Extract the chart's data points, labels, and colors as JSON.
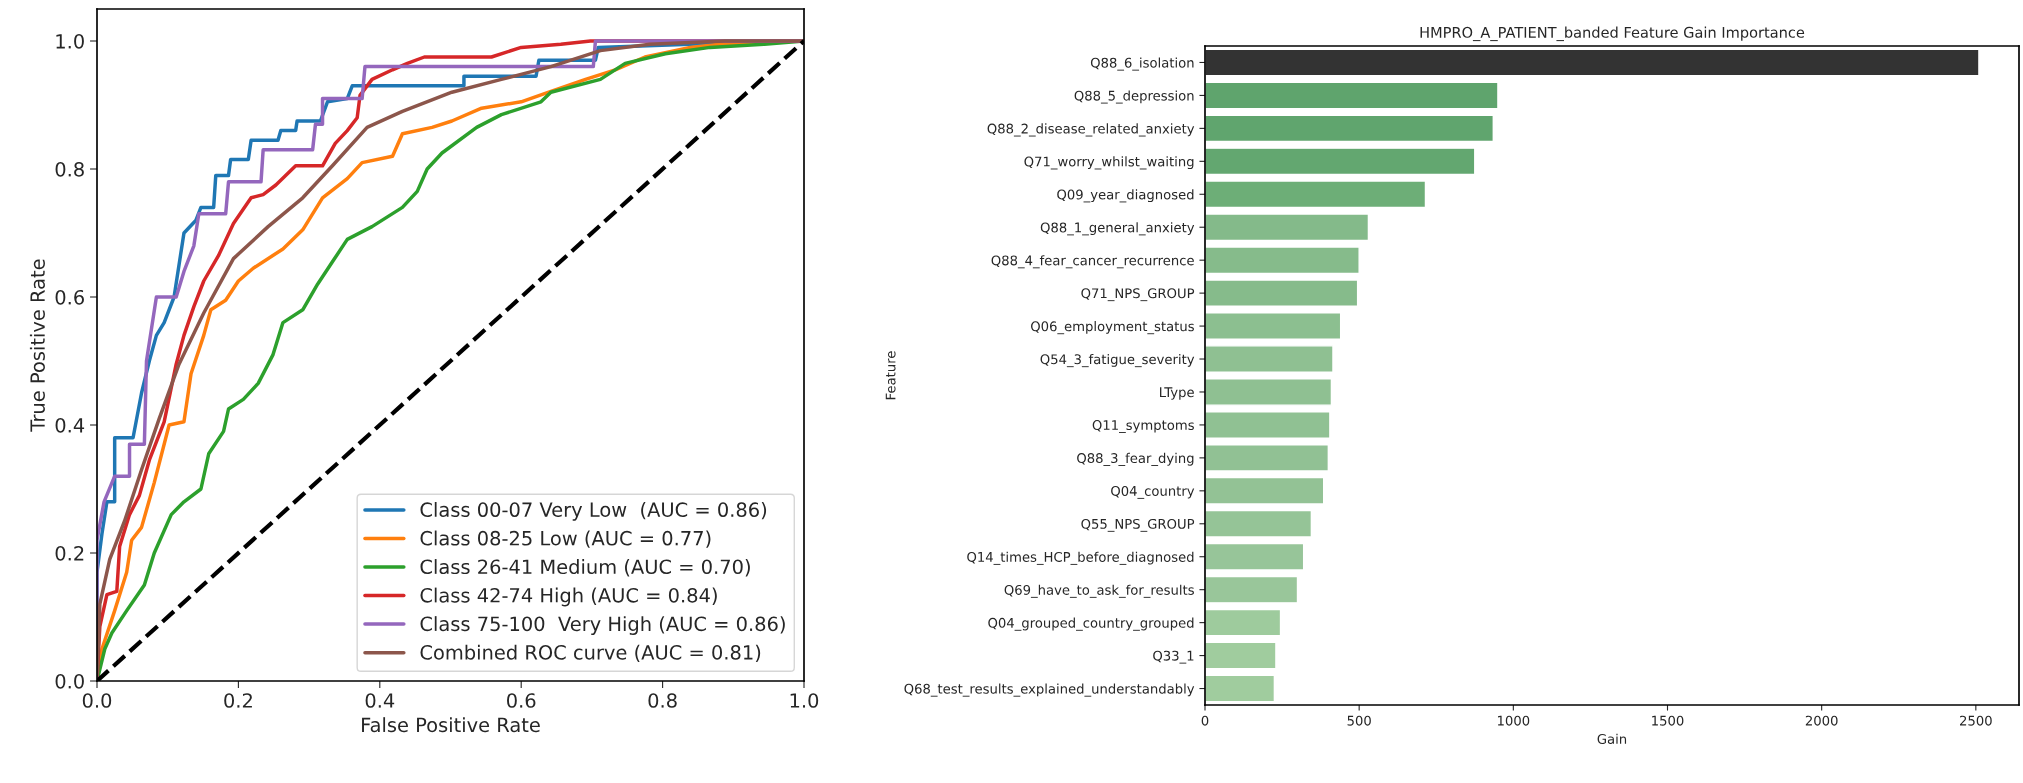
{
  "chart_data": [
    {
      "type": "line",
      "xlabel": "False Positive Rate",
      "ylabel": "True Positive Rate",
      "xlim": [
        0,
        1
      ],
      "ylim": [
        0,
        1.05
      ],
      "xticks": [
        {
          "value": 0,
          "label": "0.0"
        },
        {
          "value": 0.2,
          "label": "0.2"
        },
        {
          "value": 0.4,
          "label": "0.4"
        },
        {
          "value": 0.6,
          "label": "0.6"
        },
        {
          "value": 0.8,
          "label": "0.8"
        },
        {
          "value": 1,
          "label": "1.0"
        }
      ],
      "yticks": [
        {
          "value": 0,
          "label": "0.0"
        },
        {
          "value": 0.2,
          "label": "0.2"
        },
        {
          "value": 0.4,
          "label": "0.4"
        },
        {
          "value": 0.6,
          "label": "0.6"
        },
        {
          "value": 0.8,
          "label": "0.8"
        },
        {
          "value": 1,
          "label": "1.0"
        }
      ],
      "legend": "bottom right",
      "grid": false,
      "series": [
        {
          "name": "Class 00-07 Very Low  (AUC = 0.86)",
          "color": "#1f77b4",
          "x": [
            0,
            0,
            0.007,
            0.014,
            0.025,
            0.025,
            0.051,
            0.063,
            0.074,
            0.084,
            0.095,
            0.109,
            0.123,
            0.14,
            0.147,
            0.165,
            0.168,
            0.186,
            0.189,
            0.214,
            0.218,
            0.256,
            0.26,
            0.281,
            0.283,
            0.316,
            0.326,
            0.354,
            0.361,
            0.519,
            0.519,
            0.621,
            0.625,
            0.705,
            0.709,
            0.839,
            0.97,
            1
          ],
          "values": [
            0,
            0.17,
            0.23,
            0.28,
            0.28,
            0.38,
            0.38,
            0.45,
            0.5,
            0.54,
            0.56,
            0.6,
            0.7,
            0.72,
            0.74,
            0.74,
            0.79,
            0.79,
            0.815,
            0.815,
            0.845,
            0.845,
            0.86,
            0.86,
            0.875,
            0.875,
            0.905,
            0.91,
            0.93,
            0.93,
            0.945,
            0.945,
            0.97,
            0.97,
            0.99,
            0.995,
            1,
            1
          ]
        },
        {
          "name": "Class 08-25 Low (AUC = 0.77)",
          "color": "#ff7f0e",
          "x": [
            0,
            0.007,
            0.025,
            0.042,
            0.049,
            0.063,
            0.081,
            0.102,
            0.123,
            0.133,
            0.151,
            0.161,
            0.182,
            0.2,
            0.221,
            0.263,
            0.291,
            0.319,
            0.354,
            0.375,
            0.418,
            0.432,
            0.474,
            0.502,
            0.544,
            0.6,
            0.639,
            0.691,
            0.733,
            0.775,
            0.839,
            0.881,
            0.97,
            1
          ],
          "values": [
            0,
            0.05,
            0.11,
            0.17,
            0.22,
            0.24,
            0.31,
            0.4,
            0.405,
            0.48,
            0.54,
            0.58,
            0.595,
            0.625,
            0.645,
            0.675,
            0.705,
            0.755,
            0.785,
            0.81,
            0.82,
            0.855,
            0.865,
            0.875,
            0.895,
            0.905,
            0.92,
            0.94,
            0.955,
            0.975,
            0.99,
            0.995,
            1,
            1
          ]
        },
        {
          "name": "Class 26-41 Medium (AUC = 0.70)",
          "color": "#2ca02c",
          "x": [
            0,
            0.011,
            0.021,
            0.042,
            0.067,
            0.081,
            0.105,
            0.123,
            0.147,
            0.158,
            0.179,
            0.186,
            0.207,
            0.228,
            0.249,
            0.263,
            0.291,
            0.312,
            0.333,
            0.354,
            0.389,
            0.432,
            0.453,
            0.467,
            0.488,
            0.537,
            0.572,
            0.628,
            0.642,
            0.712,
            0.747,
            0.804,
            0.867,
            0.944,
            1
          ],
          "values": [
            0,
            0.05,
            0.075,
            0.11,
            0.15,
            0.2,
            0.26,
            0.28,
            0.3,
            0.355,
            0.39,
            0.425,
            0.44,
            0.465,
            0.51,
            0.56,
            0.58,
            0.62,
            0.655,
            0.69,
            0.71,
            0.74,
            0.765,
            0.8,
            0.825,
            0.865,
            0.885,
            0.905,
            0.92,
            0.94,
            0.965,
            0.98,
            0.99,
            0.995,
            1
          ]
        },
        {
          "name": "Class 42-74 High (AUC = 0.84)",
          "color": "#d62728",
          "x": [
            0,
            0.004,
            0.014,
            0.028,
            0.032,
            0.046,
            0.06,
            0.074,
            0.095,
            0.112,
            0.123,
            0.137,
            0.151,
            0.172,
            0.193,
            0.218,
            0.235,
            0.253,
            0.281,
            0.319,
            0.337,
            0.354,
            0.368,
            0.372,
            0.389,
            0.418,
            0.439,
            0.463,
            0.558,
            0.6,
            0.656,
            0.698,
            1
          ],
          "values": [
            0,
            0.085,
            0.135,
            0.14,
            0.21,
            0.26,
            0.29,
            0.345,
            0.405,
            0.495,
            0.54,
            0.585,
            0.625,
            0.665,
            0.715,
            0.755,
            0.76,
            0.775,
            0.805,
            0.805,
            0.84,
            0.86,
            0.88,
            0.915,
            0.94,
            0.955,
            0.965,
            0.975,
            0.975,
            0.99,
            0.995,
            1,
            1
          ]
        },
        {
          "name": "Class 75-100  Very High (AUC = 0.86)",
          "color": "#9467bd",
          "x": [
            0,
            0,
            0.01,
            0.025,
            0.046,
            0.046,
            0.067,
            0.07,
            0.077,
            0.084,
            0.112,
            0.123,
            0.137,
            0.144,
            0.182,
            0.186,
            0.232,
            0.235,
            0.305,
            0.309,
            0.319,
            0.319,
            0.375,
            0.379,
            0.702,
            0.705,
            1
          ],
          "values": [
            0,
            0.22,
            0.28,
            0.32,
            0.32,
            0.37,
            0.37,
            0.5,
            0.55,
            0.6,
            0.6,
            0.64,
            0.68,
            0.73,
            0.73,
            0.78,
            0.78,
            0.83,
            0.83,
            0.87,
            0.87,
            0.91,
            0.91,
            0.96,
            0.96,
            1,
            1
          ]
        },
        {
          "name": "Combined ROC curve (AUC = 0.81)",
          "color": "#8c564b",
          "x": [
            0,
            0.004,
            0.018,
            0.039,
            0.063,
            0.088,
            0.116,
            0.151,
            0.193,
            0.242,
            0.291,
            0.333,
            0.382,
            0.432,
            0.502,
            0.572,
            0.642,
            0.712,
            0.782,
            0.888,
            1
          ],
          "values": [
            0,
            0.12,
            0.19,
            0.25,
            0.33,
            0.41,
            0.495,
            0.575,
            0.66,
            0.71,
            0.755,
            0.805,
            0.865,
            0.89,
            0.92,
            0.94,
            0.96,
            0.985,
            0.995,
            1,
            1
          ]
        },
        {
          "color": "#000000",
          "line_style": "dashed",
          "x": [
            0,
            1
          ],
          "values": [
            0,
            1
          ]
        }
      ]
    },
    {
      "type": "bar",
      "orientation": "horizontal",
      "title": "HMPRO_A_PATIENT_banded Feature Gain Importance",
      "xlabel": "Gain",
      "ylabel": "Feature",
      "xlim": [
        0,
        2640
      ],
      "xticks": [
        0,
        500,
        1000,
        1500,
        2000,
        2500
      ],
      "grid": false,
      "categories": [
        "Q88_6_isolation",
        "Q88_5_depression",
        "Q88_2_disease_related_anxiety",
        "Q71_worry_whilst_waiting",
        "Q09_year_diagnosed",
        "Q88_1_general_anxiety",
        "Q88_4_fear_cancer_recurrence",
        "Q71_NPS_GROUP",
        "Q06_employment_status",
        "Q54_3_fatigue_severity",
        "LType",
        "Q11_symptoms",
        "Q88_3_fear_dying",
        "Q04_country",
        "Q55_NPS_GROUP",
        "Q14_times_HCP_before_diagnosed",
        "Q69_have_to_ask_for_results",
        "Q04_grouped_country_grouped",
        "Q33_1",
        "Q68_test_results_explained_understandably"
      ],
      "values": [
        2510,
        950,
        935,
        875,
        715,
        530,
        500,
        495,
        440,
        415,
        410,
        405,
        400,
        385,
        345,
        320,
        300,
        245,
        230,
        225
      ],
      "colors": [
        "#333333",
        "#5fa46d",
        "#60a56e",
        "#63a770",
        "#6dae77",
        "#84ba8a",
        "#86bb8b",
        "#86bb8b",
        "#8cbf90",
        "#8fc092",
        "#8fc092",
        "#90c193",
        "#91c194",
        "#93c295",
        "#95c497",
        "#97c599",
        "#99c69a",
        "#9ecb9d",
        "#a0cc9e",
        "#a0cc9e"
      ]
    }
  ]
}
